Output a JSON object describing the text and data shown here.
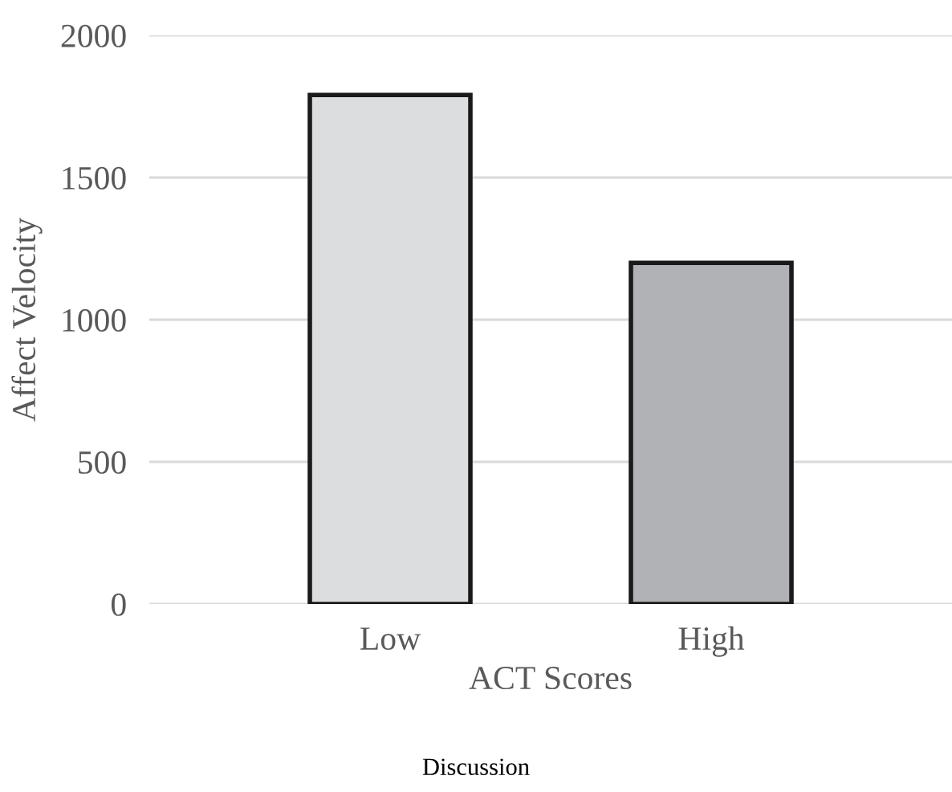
{
  "chart_data": {
    "type": "bar",
    "categories": [
      "Low",
      "High"
    ],
    "values": [
      1790,
      1200
    ],
    "colors": [
      "#dcdddf",
      "#b1b2b5"
    ],
    "xlabel": "ACT Scores",
    "ylabel": "Affect Velocity",
    "ylim": [
      0,
      2000
    ],
    "yticks": [
      0,
      500,
      1000,
      1500,
      2000
    ],
    "grid": "y",
    "annotations": [
      "Discussion"
    ]
  }
}
